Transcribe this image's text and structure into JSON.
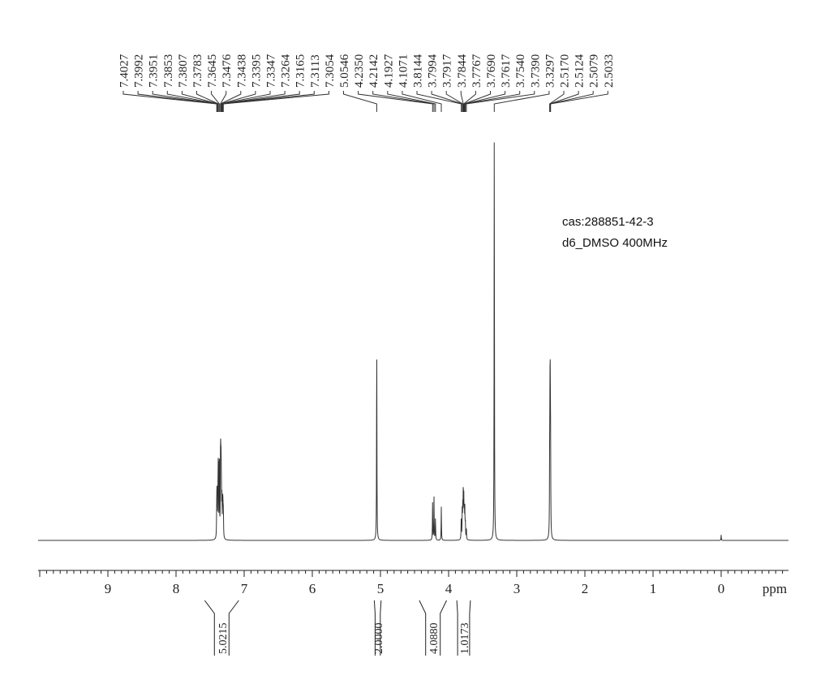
{
  "annotations": {
    "cas": "cas:288851-42-3",
    "conditions": "d6_DMSO  400MHz"
  },
  "chart_data": {
    "type": "line",
    "title": "",
    "xlabel": "ppm",
    "ylabel": "",
    "xlim": [
      10.0,
      -1.0
    ],
    "x_reversed": true,
    "major_ticks": [
      "9",
      "8",
      "7",
      "6",
      "5",
      "4",
      "3",
      "2",
      "1",
      "0"
    ],
    "grid": false,
    "peak_label_groups": [
      {
        "anchor_ppm": 7.35,
        "labels": [
          "7.4027",
          "7.3992",
          "7.3951",
          "7.3853",
          "7.3807",
          "7.3783",
          "7.3645",
          "7.3476",
          "7.3438",
          "7.3395",
          "7.3347",
          "7.3264",
          "7.3165",
          "7.3113",
          "7.3054"
        ]
      },
      {
        "anchor_ppm": 4.8,
        "labels": [
          "5.0546",
          "4.2350",
          "4.2142",
          "4.1927",
          "4.1071",
          "3.8144",
          "3.7994",
          "3.7917",
          "3.7844",
          "3.7767",
          "3.7690",
          "3.7617",
          "3.7540",
          "3.7390",
          "3.3297"
        ]
      },
      {
        "anchor_ppm": 2.51,
        "labels": [
          "2.5170",
          "2.5124",
          "2.5079",
          "2.5033"
        ]
      }
    ],
    "integrals": [
      {
        "from_ppm": 7.58,
        "to_ppm": 7.08,
        "value": "5.0215"
      },
      {
        "from_ppm": 5.09,
        "to_ppm": 4.99,
        "value": "2.0000"
      },
      {
        "from_ppm": 4.43,
        "to_ppm": 4.03,
        "value": "4.0880"
      },
      {
        "from_ppm": 3.88,
        "to_ppm": 3.68,
        "value": "1.0173"
      }
    ],
    "peaks": [
      {
        "ppm": 7.4027,
        "height": 0.3
      },
      {
        "ppm": 7.3992,
        "height": 0.32
      },
      {
        "ppm": 7.3951,
        "height": 0.33
      },
      {
        "ppm": 7.3853,
        "height": 0.4
      },
      {
        "ppm": 7.3807,
        "height": 0.45
      },
      {
        "ppm": 7.3783,
        "height": 0.48
      },
      {
        "ppm": 7.3645,
        "height": 0.98
      },
      {
        "ppm": 7.3476,
        "height": 0.7
      },
      {
        "ppm": 7.3438,
        "height": 0.62
      },
      {
        "ppm": 7.3395,
        "height": 0.58
      },
      {
        "ppm": 7.3347,
        "height": 0.5
      },
      {
        "ppm": 7.3264,
        "height": 0.42
      },
      {
        "ppm": 7.3165,
        "height": 0.36
      },
      {
        "ppm": 7.3113,
        "height": 0.32
      },
      {
        "ppm": 7.3054,
        "height": 0.28
      },
      {
        "ppm": 5.0546,
        "height": 2.2
      },
      {
        "ppm": 4.235,
        "height": 0.4
      },
      {
        "ppm": 4.2142,
        "height": 0.46
      },
      {
        "ppm": 4.1927,
        "height": 0.24
      },
      {
        "ppm": 4.1071,
        "height": 0.36
      },
      {
        "ppm": 3.8144,
        "height": 0.24
      },
      {
        "ppm": 3.7994,
        "height": 0.36
      },
      {
        "ppm": 3.7917,
        "height": 0.3
      },
      {
        "ppm": 3.7844,
        "height": 0.55
      },
      {
        "ppm": 3.7767,
        "height": 0.4
      },
      {
        "ppm": 3.769,
        "height": 0.32
      },
      {
        "ppm": 3.7617,
        "height": 0.3
      },
      {
        "ppm": 3.754,
        "height": 0.18
      },
      {
        "ppm": 3.739,
        "height": 0.12
      },
      {
        "ppm": 3.3297,
        "height": 4.5
      },
      {
        "ppm": 2.517,
        "height": 0.7
      },
      {
        "ppm": 2.5124,
        "height": 1.2
      },
      {
        "ppm": 2.5079,
        "height": 1.4
      },
      {
        "ppm": 2.5033,
        "height": 0.8
      },
      {
        "ppm": 0.0,
        "height": 0.06
      }
    ]
  }
}
